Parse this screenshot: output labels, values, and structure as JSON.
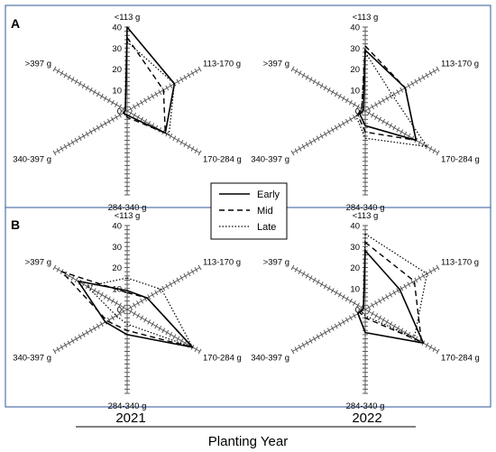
{
  "chart_data": [
    {
      "type": "radar",
      "panel": "A",
      "year": "2021",
      "categories": [
        "<113 g",
        "113-170 g",
        "170-284 g",
        "284-340 g",
        "340-397 g",
        ">397 g"
      ],
      "rlim": [
        0,
        40
      ],
      "ticks": [
        "0",
        "10",
        "20",
        "30",
        "40"
      ],
      "series": [
        {
          "name": "Early",
          "values": [
            40,
            26,
            21,
            2,
            2,
            1
          ]
        },
        {
          "name": "Mid",
          "values": [
            35,
            20,
            21,
            3,
            2,
            1
          ]
        },
        {
          "name": "Late",
          "values": [
            33,
            26,
            23,
            2,
            2,
            1
          ]
        }
      ]
    },
    {
      "type": "radar",
      "panel": "A",
      "year": "2022",
      "categories": [
        "<113 g",
        "113-170 g",
        "170-284 g",
        "284-340 g",
        "340-397 g",
        ">397 g"
      ],
      "rlim": [
        0,
        40
      ],
      "ticks": [
        "0",
        "10",
        "20",
        "30",
        "40"
      ],
      "series": [
        {
          "name": "Early",
          "values": [
            29,
            22,
            28,
            7,
            3,
            1
          ]
        },
        {
          "name": "Mid",
          "values": [
            31,
            22,
            28,
            10,
            4,
            2
          ]
        },
        {
          "name": "Late",
          "values": [
            28,
            15,
            34,
            13,
            5,
            2
          ]
        }
      ]
    },
    {
      "type": "radar",
      "panel": "B",
      "year": "2021",
      "categories": [
        "<113 g",
        "113-170 g",
        "170-284 g",
        "284-340 g",
        "340-397 g",
        ">397 g"
      ],
      "rlim": [
        0,
        40
      ],
      "ticks": [
        "0",
        "10",
        "20",
        "30",
        "40"
      ],
      "series": [
        {
          "name": "Early",
          "values": [
            9,
            11,
            36,
            12,
            12,
            27
          ]
        },
        {
          "name": "Mid",
          "values": [
            8,
            11,
            36,
            10,
            11,
            36
          ]
        },
        {
          "name": "Late",
          "values": [
            15,
            19,
            36,
            7,
            6,
            22
          ]
        }
      ]
    },
    {
      "type": "radar",
      "panel": "B",
      "year": "2022",
      "categories": [
        "<113 g",
        "113-170 g",
        "170-284 g",
        "284-340 g",
        "340-397 g",
        ">397 g"
      ],
      "rlim": [
        0,
        40
      ],
      "ticks": [
        "0",
        "10",
        "20",
        "30",
        "40"
      ],
      "series": [
        {
          "name": "Early",
          "values": [
            28,
            19,
            32,
            11,
            4,
            1
          ]
        },
        {
          "name": "Mid",
          "values": [
            32,
            27,
            31,
            4,
            3,
            1
          ]
        },
        {
          "name": "Late",
          "values": [
            36,
            34,
            27,
            3,
            2,
            1
          ]
        }
      ]
    }
  ],
  "panel_labels": {
    "a": "A",
    "b": "B"
  },
  "legend": {
    "early": "Early",
    "mid": "Mid",
    "late": "Late"
  },
  "years": {
    "y2021": "2021",
    "y2022": "2022"
  },
  "x_title": "Planting Year",
  "styles": {
    "Early": "solid",
    "Mid": "dashed",
    "Late": "dotted"
  },
  "colors": {
    "lines": "#000000",
    "axes": "#595959",
    "frame": "#2f5597"
  }
}
